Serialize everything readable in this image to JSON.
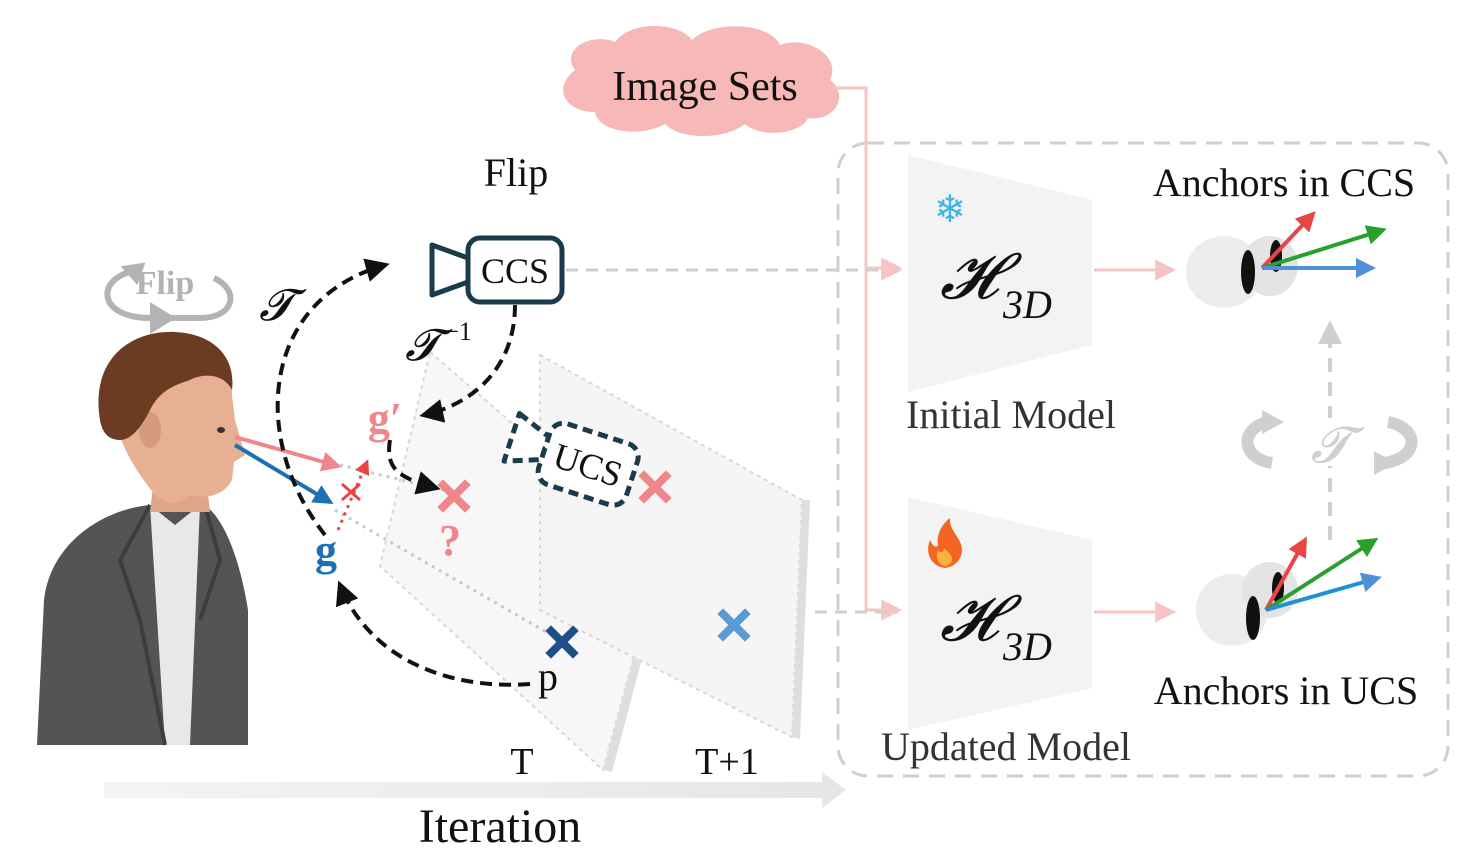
{
  "cloud_label": "Image Sets",
  "flip_label": "Flip",
  "person_flip_label": "Flip",
  "ccs_label": "CCS",
  "ucs_label": "UCS",
  "transform_symbol": "𝓣",
  "inverse_transform_symbol": "𝓣",
  "inverse_exponent": "−1",
  "g_prime_label": "g′",
  "g_label": "g",
  "p_label": "p",
  "question_mark": "?",
  "frame_t_label": "T",
  "frame_t1_label": "T+1",
  "iteration_label": "Iteration",
  "model_symbol": "𝓗",
  "model_subscript": "3D",
  "initial_model_label": "Initial Model",
  "updated_model_label": "Updated Model",
  "anchors_ccs_label": "Anchors in CCS",
  "anchors_ucs_label": "Anchors in UCS",
  "frozen_icon": "❄",
  "trainable_icon": "fire-icon",
  "colors": {
    "pink": "#f0868a",
    "light_pink": "#f7c4c4",
    "blue": "#1f6fb5",
    "light_blue": "#5b9bd5",
    "dark_navy": "#1b3b4b",
    "red_arrow": "#ea4545",
    "green_arrow": "#2aa02a",
    "gray": "#b3b3b3"
  }
}
